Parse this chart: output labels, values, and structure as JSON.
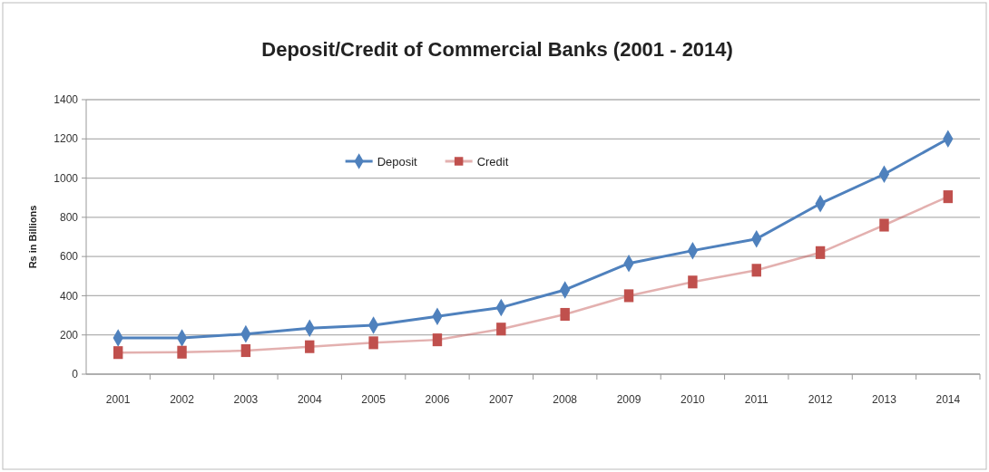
{
  "chart_data": {
    "type": "line",
    "title": "Deposit/Credit of Commercial Banks (2001 - 2014)",
    "ylabel": "Rs in Billions",
    "categories": [
      "2001",
      "2002",
      "2003",
      "2004",
      "2005",
      "2006",
      "2007",
      "2008",
      "2009",
      "2010",
      "2011",
      "2012",
      "2013",
      "2014"
    ],
    "series": [
      {
        "name": "Deposit",
        "color": "#4f81bd",
        "marker": "diamond",
        "values": [
          185,
          185,
          205,
          235,
          250,
          295,
          340,
          430,
          565,
          630,
          690,
          870,
          1020,
          1200
        ]
      },
      {
        "name": "Credit",
        "color": "#c0504d",
        "marker": "square",
        "values": [
          110,
          112,
          120,
          140,
          160,
          175,
          230,
          305,
          400,
          470,
          530,
          620,
          760,
          905
        ]
      }
    ],
    "ylim": [
      0,
      1400
    ],
    "yticks": [
      0,
      200,
      400,
      600,
      800,
      1000,
      1200,
      1400
    ],
    "grid": "y",
    "legend": "top",
    "line_style": "solid"
  }
}
